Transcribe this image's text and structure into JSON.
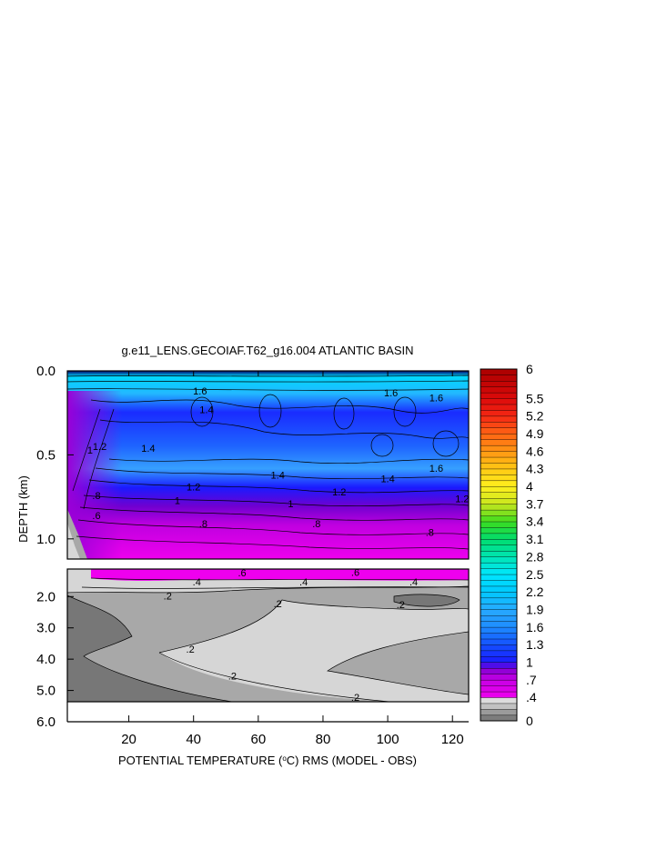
{
  "chart_data": {
    "type": "heatmap",
    "title": "g.e11_LENS.GECOIAF.T62_g16.004 ATLANTIC BASIN",
    "xlabel_pre": "POTENTIAL TEMPERATURE (",
    "xlabel_sup": "o",
    "xlabel_post": "C) RMS (MODEL - OBS)",
    "ylabel": "DEPTH (km)",
    "xlim": [
      1,
      125
    ],
    "x_ticks": [
      20,
      40,
      60,
      80,
      100,
      120
    ],
    "x_tick_labels": [
      "20",
      "40",
      "60",
      "80",
      "100",
      "120"
    ],
    "upper_panel": {
      "ylim": [
        0,
        1.12
      ],
      "y_ticks": [
        0.0,
        0.5,
        1.0
      ],
      "y_tick_labels": [
        "0.0",
        "0.5",
        "1.0"
      ]
    },
    "lower_panel": {
      "ylim": [
        1.12,
        6.0
      ],
      "y_ticks": [
        2.0,
        3.0,
        4.0,
        5.0,
        6.0
      ],
      "y_tick_labels": [
        "2.0",
        "3.0",
        "4.0",
        "5.0",
        "6.0"
      ]
    },
    "colorbar": {
      "vmin": 0,
      "vmax": 6,
      "tick_values": [
        6,
        5.5,
        5.2,
        4.9,
        4.6,
        4.3,
        4,
        3.7,
        3.4,
        3.1,
        2.8,
        2.5,
        2.2,
        1.9,
        1.6,
        1.3,
        1,
        0.7,
        0.4,
        0
      ],
      "tick_labels": [
        "6",
        "5.5",
        "5.2",
        "4.9",
        "4.6",
        "4.3",
        "4",
        "3.7",
        "3.4",
        "3.1",
        "2.8",
        "2.5",
        "2.2",
        "1.9",
        "1.6",
        "1.3",
        "1",
        ".7",
        ".4",
        "0"
      ]
    },
    "contour_labels": [
      {
        "text": "1.4",
        "x": 44,
        "depth": 0.23,
        "panel": "upper"
      },
      {
        "text": "1.6",
        "x": 42,
        "depth": 0.12,
        "panel": "upper"
      },
      {
        "text": "1.6",
        "x": 101,
        "depth": 0.13,
        "panel": "upper"
      },
      {
        "text": "1.6",
        "x": 115,
        "depth": 0.16,
        "panel": "upper"
      },
      {
        "text": "1.2",
        "x": 11,
        "depth": 0.45,
        "panel": "upper"
      },
      {
        "text": "1.4",
        "x": 26,
        "depth": 0.46,
        "panel": "upper"
      },
      {
        "text": "1",
        "x": 8,
        "depth": 0.47,
        "panel": "upper"
      },
      {
        "text": "1.4",
        "x": 66,
        "depth": 0.62,
        "panel": "upper"
      },
      {
        "text": "1.4",
        "x": 100,
        "depth": 0.64,
        "panel": "upper"
      },
      {
        "text": "1.6",
        "x": 115,
        "depth": 0.58,
        "panel": "upper"
      },
      {
        "text": "1.2",
        "x": 40,
        "depth": 0.69,
        "panel": "upper"
      },
      {
        "text": "1.2",
        "x": 85,
        "depth": 0.72,
        "panel": "upper"
      },
      {
        "text": "1.2",
        "x": 123,
        "depth": 0.76,
        "panel": "upper"
      },
      {
        "text": "1",
        "x": 35,
        "depth": 0.77,
        "panel": "upper"
      },
      {
        "text": "1",
        "x": 70,
        "depth": 0.79,
        "panel": "upper"
      },
      {
        "text": ".8",
        "x": 10,
        "depth": 0.74,
        "panel": "upper"
      },
      {
        "text": ".6",
        "x": 10,
        "depth": 0.86,
        "panel": "upper"
      },
      {
        "text": ".8",
        "x": 43,
        "depth": 0.91,
        "panel": "upper"
      },
      {
        "text": ".8",
        "x": 78,
        "depth": 0.91,
        "panel": "upper"
      },
      {
        "text": ".8",
        "x": 113,
        "depth": 0.96,
        "panel": "upper"
      },
      {
        "text": ".6",
        "x": 55,
        "depth": 1.23,
        "panel": "lower"
      },
      {
        "text": ".6",
        "x": 90,
        "depth": 1.22,
        "panel": "lower"
      },
      {
        "text": ".4",
        "x": 41,
        "depth": 1.53,
        "panel": "lower"
      },
      {
        "text": ".4",
        "x": 74,
        "depth": 1.53,
        "panel": "lower"
      },
      {
        "text": ".4",
        "x": 108,
        "depth": 1.53,
        "panel": "lower"
      },
      {
        "text": ".2",
        "x": 32,
        "depth": 1.98,
        "panel": "lower"
      },
      {
        "text": ".2",
        "x": 66,
        "depth": 2.22,
        "panel": "lower"
      },
      {
        "text": ".2",
        "x": 104,
        "depth": 2.25,
        "panel": "lower"
      },
      {
        "text": ".2",
        "x": 39,
        "depth": 3.67,
        "panel": "lower"
      },
      {
        "text": ".2",
        "x": 52,
        "depth": 4.53,
        "panel": "lower"
      },
      {
        "text": ".2",
        "x": 90,
        "depth": 5.22,
        "panel": "lower"
      }
    ],
    "legend": "right",
    "grid": false,
    "colors": {
      "deep_magenta": "#ee00ee",
      "purple": "#8800cc",
      "blue": "#1a1aff",
      "light_blue": "#33aaff",
      "cyan": "#00ddff",
      "gray_light": "#d6d6d6",
      "gray_mid": "#a8a8a8",
      "gray_dark": "#777777"
    }
  }
}
